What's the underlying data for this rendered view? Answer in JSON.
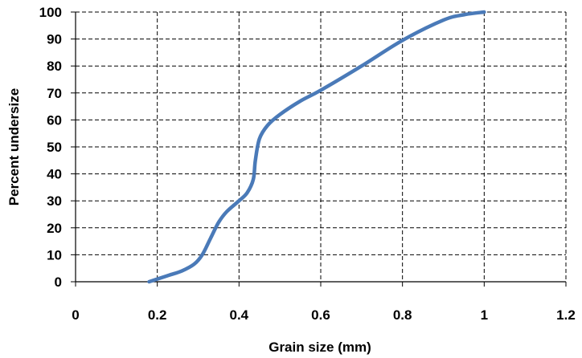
{
  "chart_data": {
    "type": "line",
    "title": "",
    "xlabel": "Grain size (mm)",
    "ylabel": "Percent undersize",
    "xlim": [
      0,
      1.2
    ],
    "ylim": [
      0,
      100
    ],
    "x_ticks": [
      "0",
      "0.2",
      "0.4",
      "0.6",
      "0.8",
      "1",
      "1.2"
    ],
    "y_ticks": [
      "0",
      "10",
      "20",
      "30",
      "40",
      "50",
      "60",
      "70",
      "80",
      "90",
      "100"
    ],
    "grid": true,
    "grid_style": "dashed",
    "legend": "none",
    "series": [
      {
        "color": "#4a7ab8",
        "x": [
          0.18,
          0.2,
          0.23,
          0.26,
          0.29,
          0.31,
          0.33,
          0.35,
          0.37,
          0.4,
          0.42,
          0.435,
          0.44,
          0.45,
          0.47,
          0.5,
          0.55,
          0.6,
          0.7,
          0.8,
          0.9,
          0.95,
          1.0
        ],
        "y": [
          0,
          1,
          2.5,
          4,
          6.5,
          10,
          16,
          22,
          26,
          30,
          33,
          38,
          45,
          53,
          58,
          62,
          67,
          71,
          80,
          89.5,
          97,
          99,
          100
        ]
      }
    ]
  }
}
